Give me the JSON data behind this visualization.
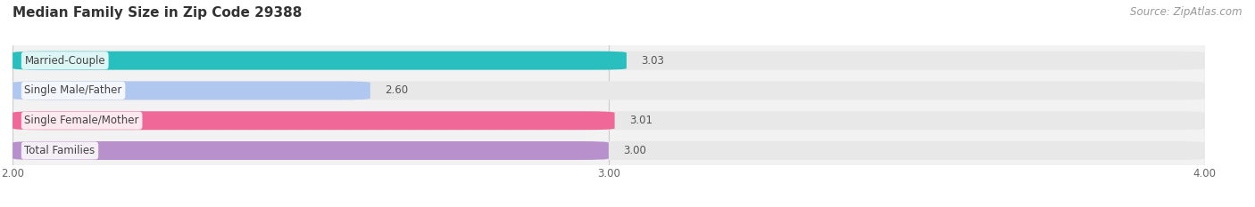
{
  "title": "Median Family Size in Zip Code 29388",
  "source": "Source: ZipAtlas.com",
  "categories": [
    "Married-Couple",
    "Single Male/Father",
    "Single Female/Mother",
    "Total Families"
  ],
  "values": [
    3.03,
    2.6,
    3.01,
    3.0
  ],
  "bar_colors": [
    "#2abfbf",
    "#b0c8f0",
    "#f06898",
    "#b890cc"
  ],
  "bar_bg_color": "#e8e8e8",
  "xlim": [
    2.0,
    4.0
  ],
  "xticks": [
    2.0,
    3.0,
    4.0
  ],
  "title_fontsize": 11,
  "label_fontsize": 8.5,
  "value_fontsize": 8.5,
  "source_fontsize": 8.5,
  "background_color": "#ffffff",
  "plot_bg_color": "#f2f2f2",
  "bar_height": 0.62,
  "bar_gap": 0.38
}
